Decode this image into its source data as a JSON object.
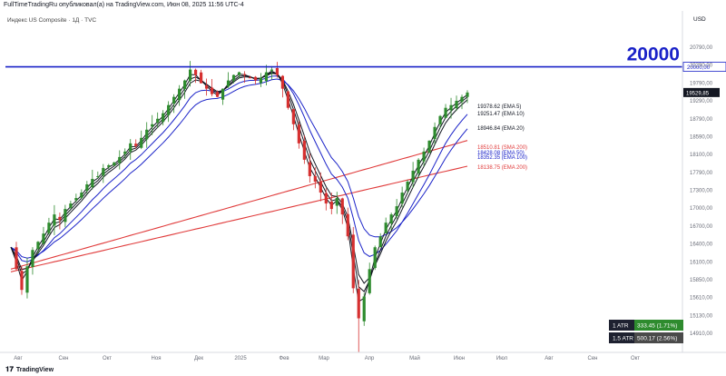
{
  "header": "FullTimeTradingRu опубликовал(а) на TradingView.com, Июн 08, 2025 11:56 UTC-4",
  "footer": {
    "logo_glyph": "𝟏𝟕",
    "label": "TradingView"
  },
  "chart_data": {
    "type": "candlestick",
    "title": "Индекс US Composite · 1Д · TVC",
    "currency": "USD",
    "x_labels": [
      "Авг",
      "Сен",
      "Окт",
      "Ноя",
      "Дек",
      "2025",
      "Фев",
      "Мар",
      "Апр",
      "Май",
      "Июн",
      "Июл",
      "Авг",
      "Сен",
      "Окт"
    ],
    "y_ticks": [
      "20790,00",
      "20290,00",
      "19790,00",
      "19290,00",
      "18790,00",
      "18590,00",
      "18100,00",
      "17790,00",
      "17300,00",
      "17000,00",
      "16700,00",
      "16400,00",
      "16100,00",
      "15850,00",
      "15610,00",
      "15130,00",
      "14910,00"
    ],
    "ylim": [
      14910,
      20790
    ],
    "horizontal_level": {
      "value": 20000,
      "label": "20000",
      "axis_label": "20000,00",
      "color": "#1a22c8"
    },
    "last_price": {
      "label": "19529,85",
      "value": 19529.85
    },
    "ma_labels": [
      {
        "text": "19378.62 (EMA 5)",
        "color": "#131722"
      },
      {
        "text": "19251.47 (EMA 10)",
        "color": "#131722"
      },
      {
        "text": "18946.84 (EMA 20)",
        "color": "#131722"
      },
      {
        "text": "18510.81 (SMA 200)",
        "color": "#e03a3a"
      },
      {
        "text": "18428.08 (EMA 50)",
        "color": "#1a22c8"
      },
      {
        "text": "18352.35 (EMA 100)",
        "color": "#1a22c8"
      },
      {
        "text": "18138.75 (EMA 200)",
        "color": "#e03a3a"
      }
    ],
    "atr": [
      {
        "label": "1 ATR",
        "value": "333.45 (1.71%)",
        "color": "#2e8b2e"
      },
      {
        "label": "1.5 ATR",
        "value": "500.17 (2.56%)",
        "color": "#4a4a4a"
      }
    ],
    "series_shape": {
      "price_closes": [
        16700,
        16300,
        15920,
        16350,
        16650,
        16800,
        16950,
        17150,
        17300,
        17200,
        17400,
        17500,
        17600,
        17700,
        17850,
        17950,
        18000,
        18150,
        18200,
        18250,
        18350,
        18450,
        18600,
        18550,
        18700,
        18850,
        18950,
        19050,
        19150,
        19300,
        19450,
        19600,
        19750,
        19950,
        19850,
        19700,
        19600,
        19500,
        19450,
        19600,
        19750,
        19850,
        19900,
        19850,
        19800,
        19750,
        19800,
        19900,
        19950,
        19850,
        19600,
        19250,
        18950,
        18600,
        18300,
        18000,
        17900,
        17700,
        17500,
        17400,
        17600,
        17300,
        16900,
        15950,
        15400,
        15800,
        16300,
        16700,
        16900,
        17150,
        17300,
        17450,
        17700,
        17900,
        18100,
        18300,
        18450,
        18650,
        18900,
        19100,
        19250,
        19300,
        19378,
        19450,
        19530
      ]
    }
  }
}
